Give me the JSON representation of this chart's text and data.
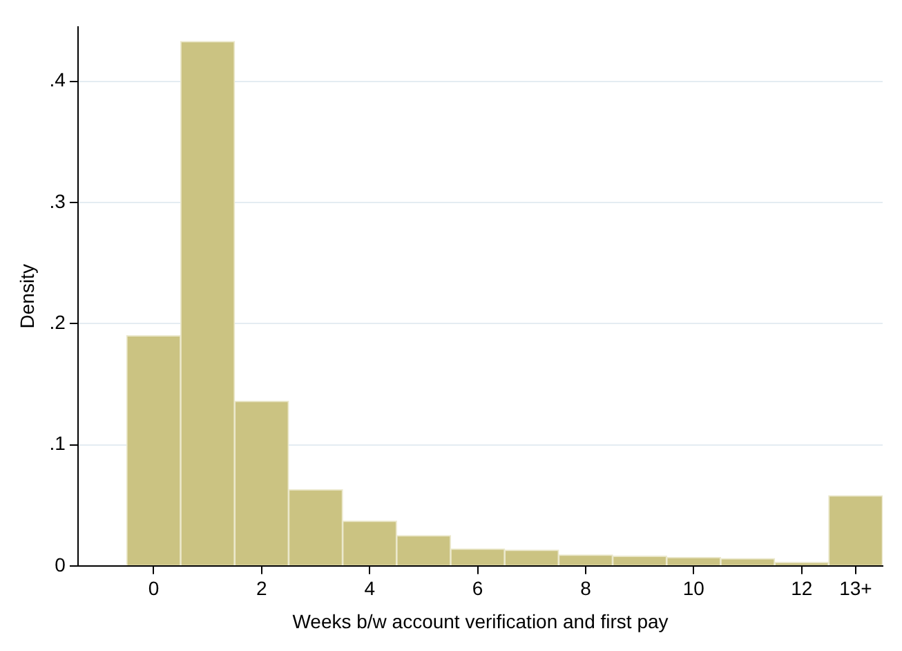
{
  "chart_data": {
    "type": "histogram",
    "xlabel": "Weeks b/w account verification and first pay",
    "ylabel": "Density",
    "bins": [
      -0.5,
      0.5,
      1.5,
      2.5,
      3.5,
      4.5,
      5.5,
      6.5,
      7.5,
      8.5,
      9.5,
      10.5,
      11.5,
      12.5,
      13.5
    ],
    "values": [
      0.19,
      0.433,
      0.136,
      0.063,
      0.037,
      0.025,
      0.014,
      0.013,
      0.009,
      0.008,
      0.007,
      0.006,
      0.003,
      0.058
    ],
    "color": "#cbc382",
    "xlim": [
      -1.4,
      13.5
    ],
    "xticks": [
      0,
      2,
      4,
      6,
      8,
      10,
      12,
      {
        "value": 13,
        "label": "13+"
      }
    ],
    "ylim": [
      0,
      0.445
    ],
    "yticks": [
      0,
      {
        "value": 0.1,
        "label": ".1"
      },
      {
        "value": 0.2,
        "label": ".2"
      },
      {
        "value": 0.3,
        "label": ".3"
      },
      {
        "value": 0.4,
        "label": ".4"
      }
    ],
    "grid": "y",
    "legend": false
  }
}
